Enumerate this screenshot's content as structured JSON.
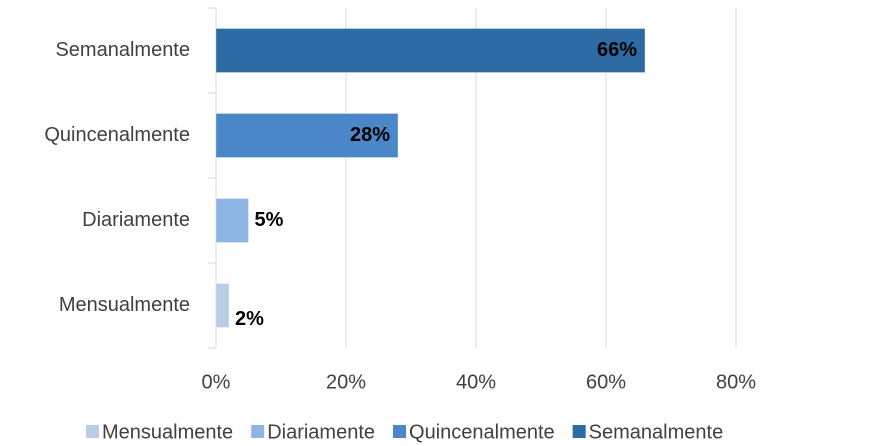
{
  "chart_data": {
    "type": "bar",
    "orientation": "horizontal",
    "categories": [
      "Mensualmente",
      "Diariamente",
      "Quincenalmente",
      "Semanalmente"
    ],
    "series": [
      {
        "name": "Mensualmente",
        "color": "#b9cde5",
        "values": [
          2,
          null,
          null,
          null
        ],
        "value_labels": [
          "2%",
          null,
          null,
          null
        ]
      },
      {
        "name": "Diariamente",
        "color": "#8eb4e3",
        "values": [
          null,
          5,
          null,
          null
        ],
        "value_labels": [
          null,
          "5%",
          null,
          null
        ]
      },
      {
        "name": "Quincenalmente",
        "color": "#4a86c8",
        "values": [
          null,
          null,
          28,
          null
        ],
        "value_labels": [
          null,
          null,
          "28%",
          null
        ]
      },
      {
        "name": "Semanalmente",
        "color": "#2e6aa4",
        "values": [
          null,
          null,
          null,
          66
        ],
        "value_labels": [
          null,
          null,
          null,
          "66%"
        ]
      }
    ],
    "xlim": [
      0,
      80
    ],
    "xticks": [
      {
        "value": 0,
        "label": "0%"
      },
      {
        "value": 20,
        "label": "20%"
      },
      {
        "value": 40,
        "label": "40%"
      },
      {
        "value": 60,
        "label": "60%"
      },
      {
        "value": 80,
        "label": "80%"
      }
    ],
    "grid": true,
    "legend": "bottom"
  }
}
